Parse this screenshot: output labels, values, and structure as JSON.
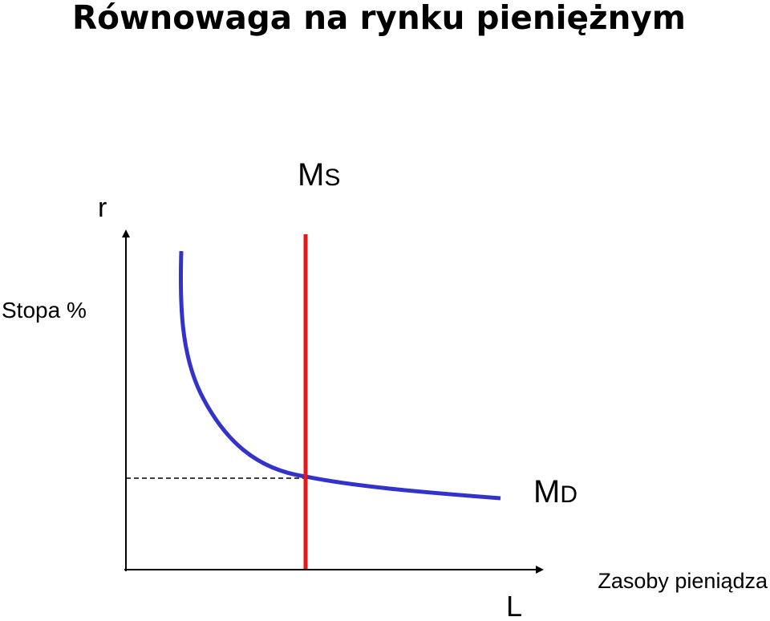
{
  "title": "Równowaga na rynku pieniężnym",
  "y_axis": {
    "symbol": "r",
    "label": "Stopa %"
  },
  "x_axis": {
    "symbol": "L",
    "label": "Zasoby pieniądza"
  },
  "supply_curve": {
    "main": "M",
    "sub": "S"
  },
  "demand_curve": {
    "main": "M",
    "sub": "D"
  }
}
